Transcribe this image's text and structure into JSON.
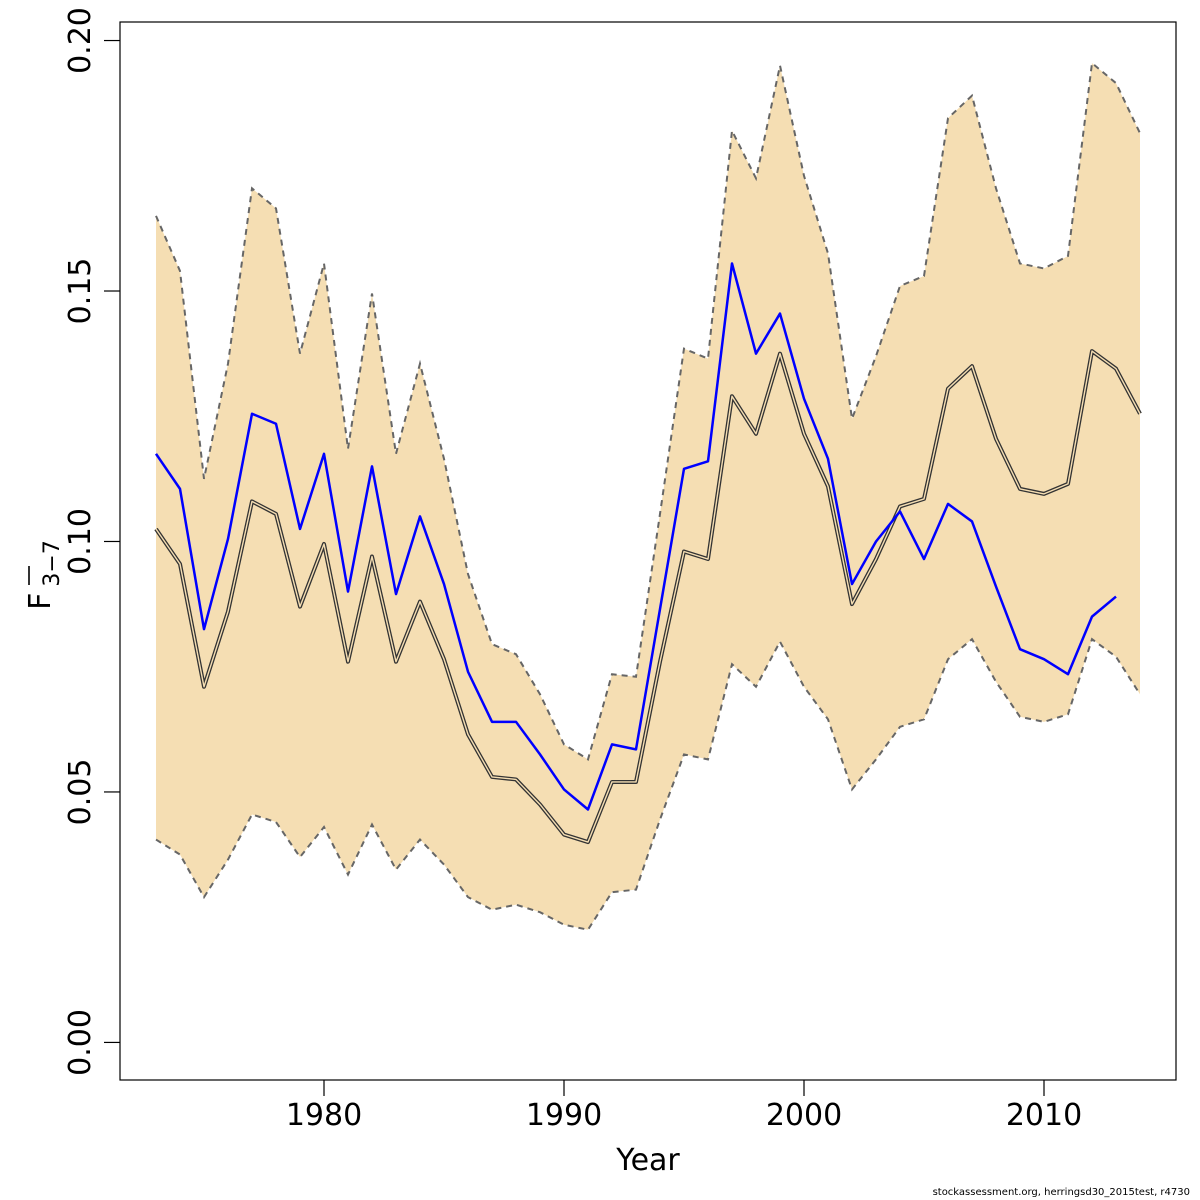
{
  "chart_data": {
    "type": "line",
    "xlabel": "Year",
    "ylabel": {
      "main": "F",
      "sub": "3−7"
    },
    "xlim": [
      1971.5,
      2015.5
    ],
    "ylim": [
      -0.0075,
      0.2037
    ],
    "xticks": [
      1980,
      1990,
      2000,
      2010
    ],
    "xtick_labels": [
      "1980",
      "1990",
      "2000",
      "2010"
    ],
    "yticks": [
      0.0,
      0.05,
      0.1,
      0.15,
      0.2
    ],
    "ytick_labels": [
      "0.00",
      "0.05",
      "0.10",
      "0.15",
      "0.20"
    ],
    "grid": false,
    "colors": {
      "band": "#F5DEB3",
      "band_edge": "#666666",
      "estimate": "#333333",
      "retro": "#0000FF"
    },
    "x": [
      1973,
      1974,
      1975,
      1976,
      1977,
      1978,
      1979,
      1980,
      1981,
      1982,
      1983,
      1984,
      1985,
      1986,
      1987,
      1988,
      1989,
      1990,
      1991,
      1992,
      1993,
      1994,
      1995,
      1996,
      1997,
      1998,
      1999,
      2000,
      2001,
      2002,
      2003,
      2004,
      2005,
      2006,
      2007,
      2008,
      2009,
      2010,
      2011,
      2012,
      2013,
      2014
    ],
    "series": [
      {
        "role": "upper",
        "values": [
          0.165,
          0.154,
          0.1125,
          0.1355,
          0.1705,
          0.1665,
          0.1375,
          0.1555,
          0.1185,
          0.1495,
          0.1175,
          0.1355,
          0.1165,
          0.0935,
          0.0795,
          0.0775,
          0.0695,
          0.0595,
          0.0565,
          0.0735,
          0.073,
          0.1055,
          0.1385,
          0.1365,
          0.182,
          0.1725,
          0.195,
          0.173,
          0.1575,
          0.1245,
          0.137,
          0.151,
          0.153,
          0.1845,
          0.189,
          0.1705,
          0.1555,
          0.1545,
          0.157,
          0.1955,
          0.1915,
          0.1815
        ]
      },
      {
        "role": "lower",
        "values": [
          0.0405,
          0.0375,
          0.029,
          0.0365,
          0.0455,
          0.044,
          0.037,
          0.043,
          0.0335,
          0.0435,
          0.0345,
          0.0405,
          0.0355,
          0.029,
          0.0265,
          0.0275,
          0.026,
          0.0235,
          0.0225,
          0.03,
          0.0305,
          0.0445,
          0.0575,
          0.0565,
          0.0755,
          0.071,
          0.08,
          0.071,
          0.0645,
          0.0505,
          0.0565,
          0.063,
          0.0645,
          0.0765,
          0.0805,
          0.072,
          0.065,
          0.064,
          0.0655,
          0.0805,
          0.077,
          0.0695
        ]
      },
      {
        "role": "estimate",
        "values": [
          0.1025,
          0.0955,
          0.071,
          0.086,
          0.108,
          0.1055,
          0.087,
          0.0995,
          0.076,
          0.097,
          0.076,
          0.088,
          0.0765,
          0.0615,
          0.053,
          0.0525,
          0.0475,
          0.0415,
          0.04,
          0.052,
          0.052,
          0.076,
          0.098,
          0.0965,
          0.129,
          0.1215,
          0.1375,
          0.1215,
          0.111,
          0.0875,
          0.0965,
          0.107,
          0.1085,
          0.1305,
          0.135,
          0.1205,
          0.1105,
          0.1095,
          0.1115,
          0.138,
          0.1345,
          0.1255
        ]
      },
      {
        "role": "retrospective",
        "values": [
          0.1175,
          0.1105,
          0.0825,
          0.1005,
          0.1255,
          0.1235,
          0.1025,
          0.1175,
          0.09,
          0.115,
          0.0895,
          0.105,
          0.0915,
          0.074,
          0.064,
          0.064,
          0.0575,
          0.0505,
          0.0465,
          0.0595,
          0.0585,
          0.0865,
          0.1145,
          0.116,
          0.1555,
          0.1375,
          0.1455,
          0.1285,
          0.1165,
          0.0915,
          0.1,
          0.106,
          0.0965,
          0.1075,
          0.104,
          0.091,
          0.0785,
          0.0765,
          0.0735,
          0.085,
          0.089,
          null
        ]
      }
    ]
  },
  "footer": {
    "credit": "stockassessment.org, herringsd30_2015test, r4730"
  }
}
